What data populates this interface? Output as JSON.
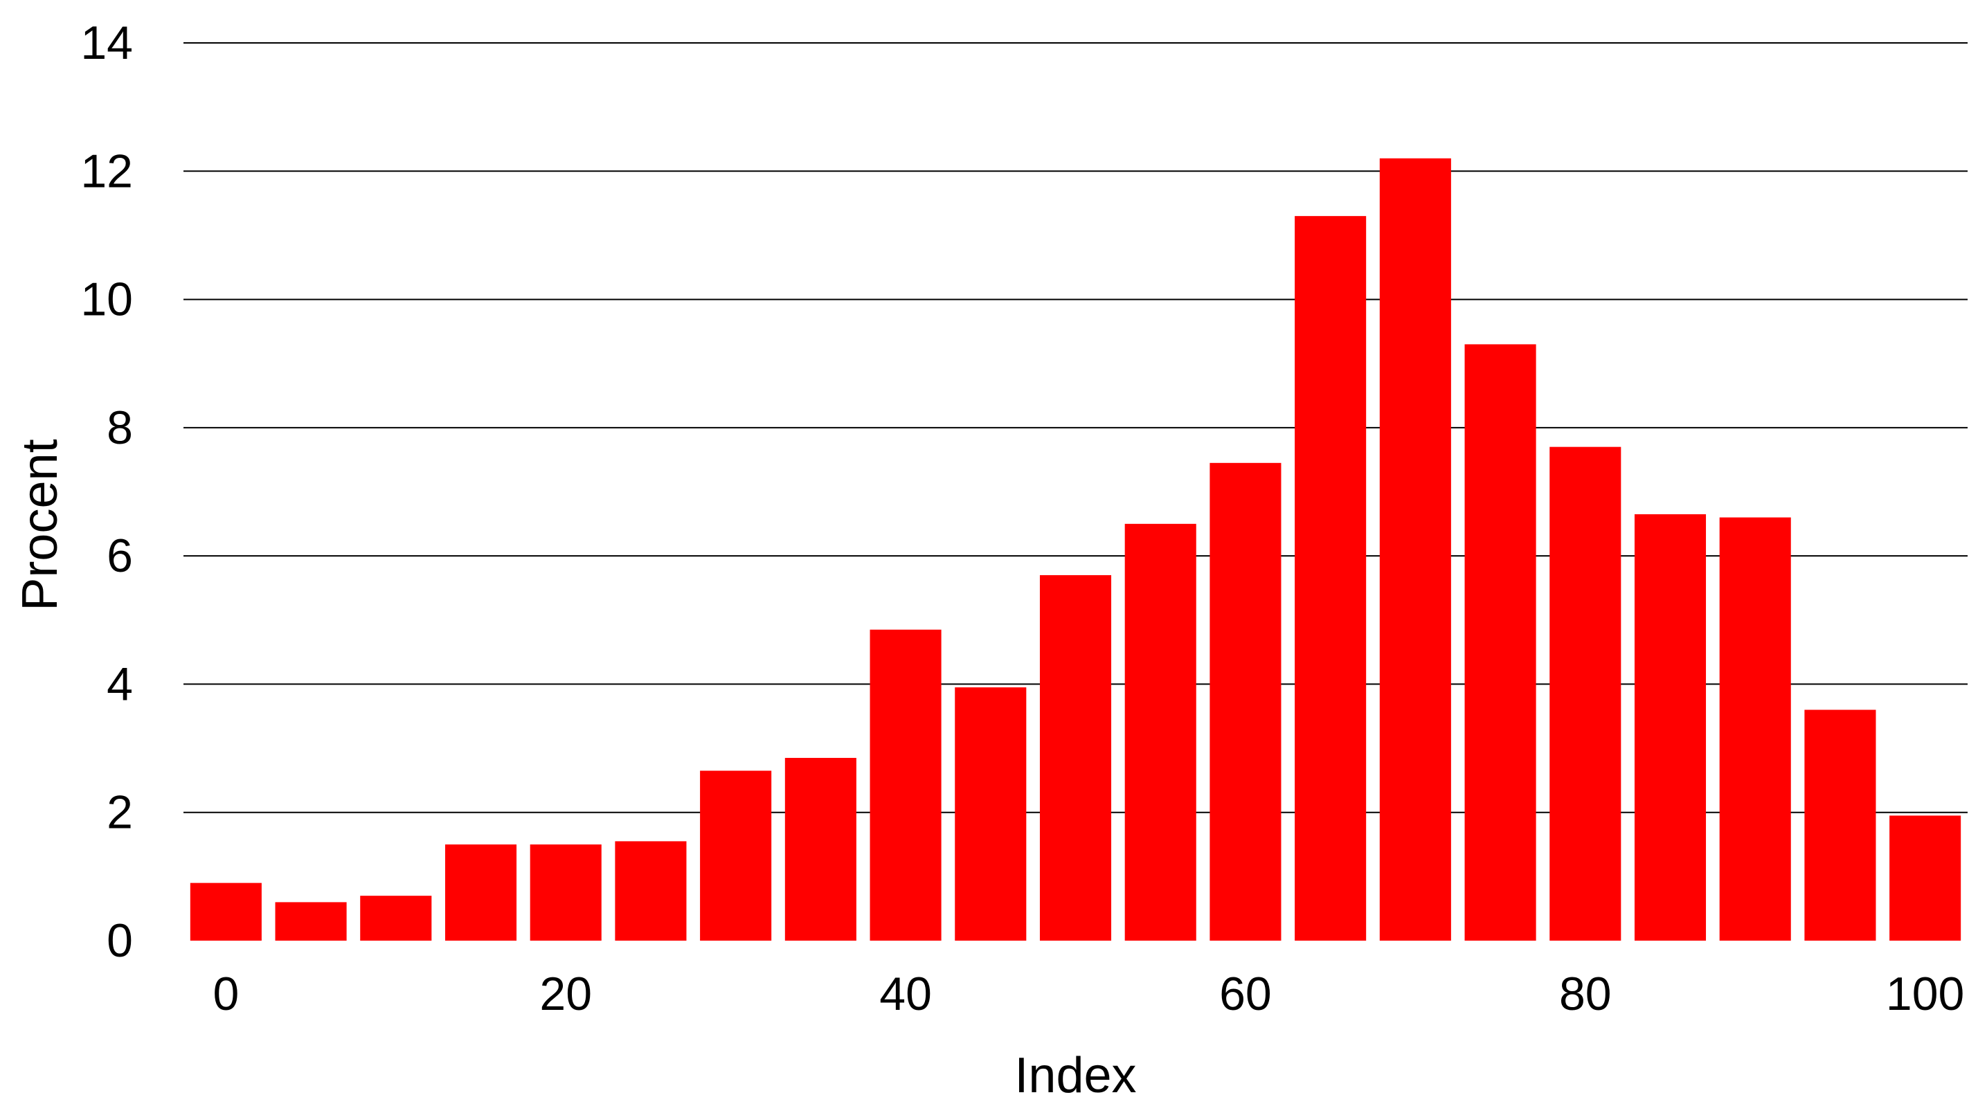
{
  "chart_data": {
    "type": "bar",
    "title": "",
    "xlabel": "Index",
    "ylabel": "Procent",
    "bar_color": "#ff0000",
    "grid_color": "#000000",
    "grid": "horizontal",
    "legend": "none",
    "xlim": [
      -2.5,
      102.5
    ],
    "ylim": [
      0,
      14
    ],
    "x_ticks": [
      0,
      20,
      40,
      60,
      80,
      100
    ],
    "y_ticks": [
      0,
      2,
      4,
      6,
      8,
      10,
      12,
      14
    ],
    "bar_width": 4.2,
    "x": [
      0,
      5,
      10,
      15,
      20,
      25,
      30,
      35,
      40,
      45,
      50,
      55,
      60,
      65,
      70,
      75,
      80,
      85,
      90,
      95,
      100
    ],
    "values": [
      0.9,
      0.6,
      0.7,
      1.5,
      1.5,
      1.55,
      2.65,
      2.85,
      4.85,
      3.95,
      5.7,
      6.5,
      7.45,
      11.3,
      12.2,
      9.3,
      7.7,
      6.65,
      6.6,
      3.6,
      1.95
    ]
  }
}
